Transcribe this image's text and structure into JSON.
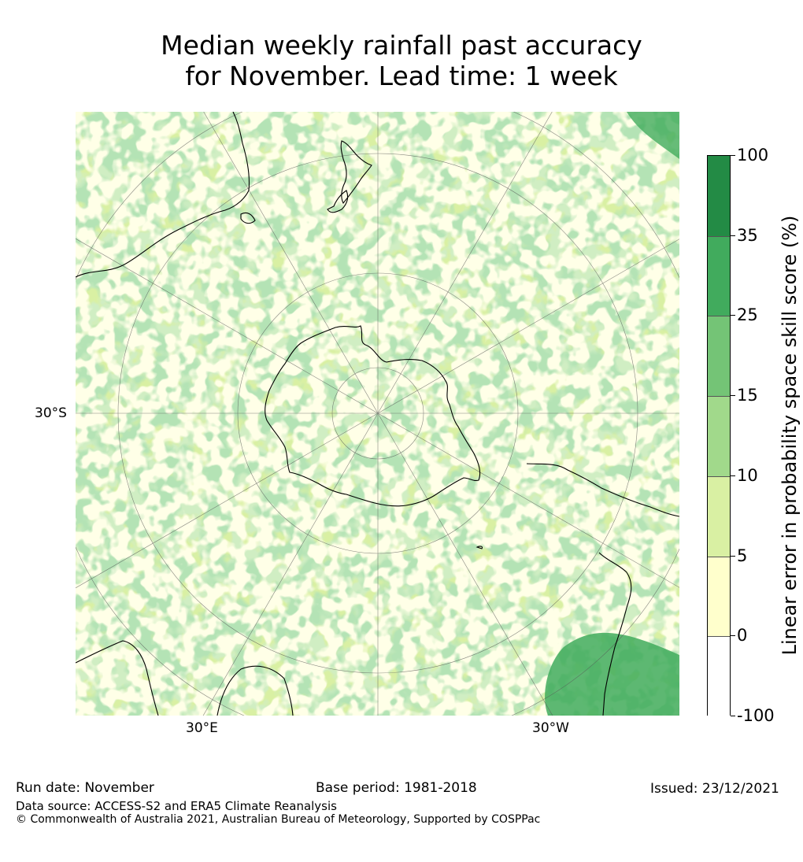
{
  "title": "Median weekly rainfall past accuracy\nfor November. Lead time: 1 week",
  "map": {
    "projection": "south-polar-stereographic",
    "lat_labels": [
      "30°S"
    ],
    "lon_labels": [
      "30°E",
      "30°W"
    ]
  },
  "colorbar": {
    "label": "Linear error in probability space skill score (%)",
    "ticks": [
      "100",
      "35",
      "25",
      "15",
      "10",
      "5",
      "0",
      "-100"
    ],
    "bins": [
      {
        "from": 35,
        "to": 100,
        "color": "#238b45"
      },
      {
        "from": 25,
        "to": 35,
        "color": "#41ab5d"
      },
      {
        "from": 15,
        "to": 25,
        "color": "#74c476"
      },
      {
        "from": 10,
        "to": 15,
        "color": "#a1d98b"
      },
      {
        "from": 5,
        "to": 10,
        "color": "#d9f0a3"
      },
      {
        "from": 0,
        "to": 5,
        "color": "#ffffcc"
      },
      {
        "from": -100,
        "to": 0,
        "color": "#ffffff"
      }
    ]
  },
  "footer": {
    "run_date": "Run date: November",
    "base_period": "Base period: 1981-2018",
    "issued": "Issued: 23/12/2021",
    "data_source": "Data source: ACCESS-S2 and ERA5 Climate Reanalysis",
    "copyright": "© Commonwealth of Australia 2021, Australian Bureau of Meteorology, Supported by COSPPac"
  }
}
